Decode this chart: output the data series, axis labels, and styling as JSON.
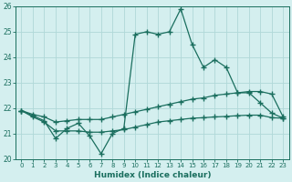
{
  "xlabel": "Humidex (Indice chaleur)",
  "x": [
    0,
    1,
    2,
    3,
    4,
    5,
    6,
    7,
    8,
    9,
    10,
    11,
    12,
    13,
    14,
    15,
    16,
    17,
    18,
    19,
    20,
    21,
    22,
    23
  ],
  "line1": [
    21.9,
    21.7,
    21.5,
    20.8,
    21.2,
    21.4,
    20.9,
    20.2,
    21.0,
    21.2,
    24.9,
    25.0,
    24.9,
    25.0,
    25.9,
    24.5,
    23.6,
    23.9,
    23.6,
    22.6,
    22.6,
    22.2,
    21.8,
    21.6
  ],
  "line2": [
    21.9,
    21.75,
    21.65,
    21.45,
    21.5,
    21.55,
    21.55,
    21.55,
    21.65,
    21.75,
    21.85,
    21.95,
    22.05,
    22.15,
    22.25,
    22.35,
    22.4,
    22.5,
    22.55,
    22.6,
    22.65,
    22.65,
    22.55,
    21.65
  ],
  "line3": [
    21.9,
    21.65,
    21.45,
    21.1,
    21.1,
    21.1,
    21.05,
    21.05,
    21.1,
    21.15,
    21.25,
    21.35,
    21.45,
    21.5,
    21.55,
    21.6,
    21.62,
    21.65,
    21.67,
    21.7,
    21.72,
    21.72,
    21.62,
    21.6
  ],
  "line_color": "#1a6e5e",
  "bg_color": "#d4efef",
  "grid_color": "#b0d8d8",
  "ylim": [
    20,
    26
  ],
  "yticks": [
    20,
    21,
    22,
    23,
    24,
    25,
    26
  ],
  "xticks": [
    0,
    1,
    2,
    3,
    4,
    5,
    6,
    7,
    8,
    9,
    10,
    11,
    12,
    13,
    14,
    15,
    16,
    17,
    18,
    19,
    20,
    21,
    22,
    23
  ],
  "marker": "+",
  "markersize": 4,
  "linewidth": 0.9
}
